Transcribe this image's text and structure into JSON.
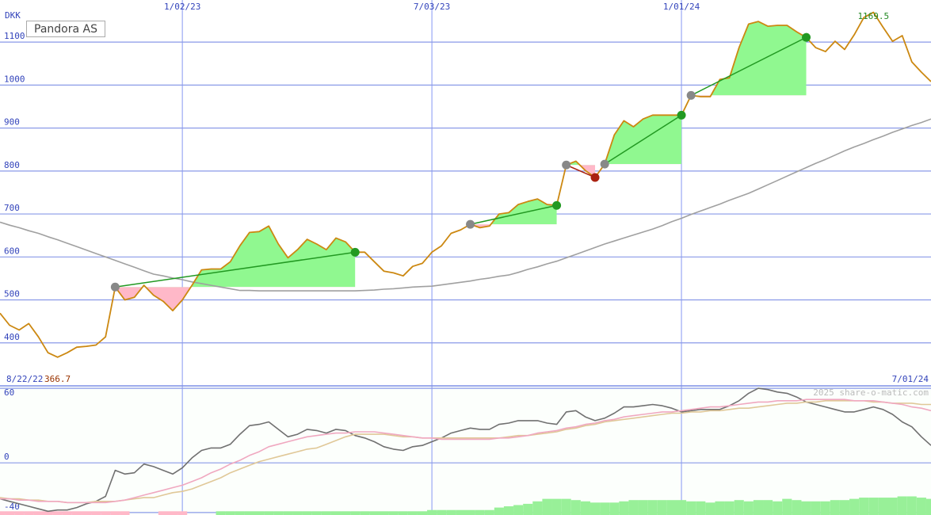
{
  "chart_data": [
    {
      "type": "line",
      "title": "Pandora AS",
      "y_label": "DKK",
      "xlim": [
        "8/22/22",
        "7/01/24"
      ],
      "xticks": [
        "1/02/23",
        "7/03/23",
        "1/01/24"
      ],
      "ylim": [
        300,
        1198
      ],
      "yticks": [
        400,
        500,
        600,
        700,
        800,
        900,
        1000,
        1100
      ],
      "grid": true,
      "low": 366.7,
      "high": 1169.5,
      "low_color": "#993300",
      "high_color": "#228822",
      "series": [
        {
          "color": "#cc8811",
          "values": [
            469,
            441,
            430,
            445,
            414,
            377,
            366.7,
            377,
            390,
            392,
            395,
            414,
            530,
            500,
            506,
            534,
            511,
            497,
            475,
            500,
            534,
            570,
            572,
            572,
            589,
            626,
            657,
            659,
            672,
            630,
            598,
            617,
            641,
            630,
            617,
            644,
            635,
            611,
            611,
            589,
            567,
            563,
            556,
            578,
            585,
            611,
            626,
            655,
            663,
            676,
            668,
            672,
            700,
            703,
            722,
            729,
            735,
            722,
            720,
            814,
            823,
            801,
            785,
            816,
            884,
            917,
            903,
            921,
            930,
            930,
            930,
            930,
            976,
            973,
            973,
            1013,
            1017,
            1087,
            1142,
            1148,
            1137,
            1139,
            1139,
            1124,
            1111,
            1087,
            1078,
            1102,
            1083,
            1117,
            1157,
            1169.5,
            1135,
            1102,
            1115,
            1054,
            1030,
            1008
          ]
        },
        {
          "color": "#a0a0a0",
          "values": [
            681,
            674,
            668,
            661,
            655,
            647,
            640,
            632,
            624,
            616,
            608,
            600,
            592,
            584,
            576,
            568,
            560,
            556,
            551,
            547,
            542,
            538,
            534,
            530,
            526,
            522,
            522,
            521,
            521,
            521,
            521,
            521,
            521,
            521,
            521,
            521,
            521,
            521,
            522,
            523,
            525,
            526,
            528,
            530,
            531,
            532,
            535,
            538,
            541,
            544,
            548,
            551,
            555,
            558,
            564,
            571,
            577,
            584,
            590,
            598,
            606,
            614,
            622,
            630,
            637,
            644,
            651,
            658,
            665,
            673,
            682,
            690,
            699,
            707,
            715,
            723,
            732,
            740,
            748,
            758,
            768,
            778,
            788,
            798,
            808,
            818,
            827,
            837,
            847,
            856,
            864,
            873,
            881,
            890,
            898,
            906,
            913,
            921
          ]
        }
      ],
      "trades": [
        {
          "entry": 12,
          "exit": 37
        },
        {
          "entry": 49,
          "exit": 58
        },
        {
          "entry": 59,
          "exit": 62
        },
        {
          "entry": 63,
          "exit": 71
        },
        {
          "entry": 72,
          "exit": 84
        }
      ],
      "entry_color": "#888888",
      "gain_color": "#229922",
      "loss_color": "#aa2211",
      "gain_fill": "#90f890",
      "loss_fill": "#ffb8c8"
    },
    {
      "type": "line",
      "watermark": "2025 share-o-matic.com",
      "ylim": [
        -42,
        62
      ],
      "yticks": [
        -40,
        0,
        60
      ],
      "grid": true,
      "series": [
        {
          "type": "bar",
          "color": "#98f098",
          "values": [
            null,
            null,
            null,
            null,
            null,
            null,
            null,
            null,
            null,
            null,
            null,
            null,
            null,
            null,
            null,
            null,
            null,
            null,
            null,
            null,
            null,
            null,
            null,
            -39,
            -39,
            -39,
            -39,
            -39,
            -39,
            -39,
            -39,
            -39,
            -39,
            -39,
            -39,
            -39,
            -39,
            -39,
            -39,
            -39,
            -39,
            -39,
            -39,
            -39,
            -39,
            -38,
            -38,
            -38,
            -38,
            -38,
            -38,
            -38,
            -36,
            -35,
            -34,
            -33,
            -31,
            -29,
            -29,
            -29,
            -30,
            -31,
            -32,
            -32,
            -32,
            -31,
            -30,
            -30,
            -30,
            -30,
            -30,
            -30,
            -31,
            -31,
            -32,
            -31,
            -31,
            -30,
            -31,
            -30,
            -30,
            -31,
            -29,
            -30,
            -31,
            -31,
            -31,
            -30,
            -30,
            -29,
            -28,
            -28,
            -28,
            -28,
            -27,
            -27,
            -28,
            -29
          ]
        },
        {
          "type": "bar",
          "color": "#ffb8c8",
          "values": [
            -39,
            -39,
            -39,
            -39,
            -39,
            -39,
            -39,
            -39,
            -39,
            -39,
            -39,
            -39,
            -39,
            -39,
            null,
            null,
            null,
            -39,
            -39,
            -39,
            null,
            null,
            null,
            null,
            null,
            null,
            null,
            null,
            null,
            null,
            null,
            null,
            null,
            null,
            null,
            null,
            null,
            null,
            null,
            null,
            null,
            null,
            null,
            null,
            null,
            null,
            null,
            null,
            null,
            null,
            null,
            null,
            null,
            null,
            null,
            null,
            null,
            null,
            null,
            null,
            null,
            null,
            null,
            null,
            null,
            null,
            null,
            null,
            null,
            null,
            null,
            null,
            null,
            null,
            null,
            null,
            null,
            null,
            null,
            null,
            null,
            null,
            null,
            null,
            null,
            null,
            null,
            null,
            null,
            null,
            null,
            null,
            null,
            null,
            null,
            null,
            null,
            null
          ]
        },
        {
          "color": "#f0a8c0",
          "values": [
            -29,
            -29,
            -30,
            -30,
            -31,
            -31,
            -31,
            -32,
            -32,
            -32,
            -32,
            -32,
            -31,
            -30,
            -28,
            -26,
            -24,
            -22,
            -20,
            -18,
            -15,
            -12,
            -8,
            -5,
            -1,
            2,
            6,
            9,
            13,
            15,
            17,
            19,
            21,
            22,
            23,
            24,
            24,
            25,
            25,
            25,
            24,
            23,
            22,
            21,
            20,
            20,
            19,
            19,
            19,
            19,
            19,
            19,
            20,
            20,
            21,
            22,
            24,
            25,
            26,
            28,
            29,
            31,
            32,
            34,
            35,
            37,
            38,
            39,
            40,
            41,
            41,
            42,
            43,
            44,
            45,
            45,
            46,
            47,
            48,
            49,
            49,
            50,
            50,
            50,
            51,
            51,
            51,
            51,
            51,
            50,
            50,
            50,
            49,
            48,
            47,
            45,
            44,
            42
          ]
        },
        {
          "color": "#e0c898",
          "values": [
            -28,
            -29,
            -29,
            -30,
            -30,
            -31,
            -31,
            -32,
            -32,
            -32,
            -31,
            -31,
            -31,
            -30,
            -29,
            -28,
            -28,
            -26,
            -24,
            -23,
            -21,
            -18,
            -15,
            -12,
            -8,
            -5,
            -2,
            1,
            3,
            5,
            7,
            9,
            11,
            12,
            15,
            18,
            21,
            23,
            23,
            23,
            23,
            22,
            21,
            21,
            20,
            20,
            20,
            20,
            20,
            20,
            20,
            20,
            20,
            21,
            22,
            22,
            23,
            24,
            25,
            27,
            28,
            30,
            31,
            33,
            34,
            35,
            36,
            37,
            38,
            39,
            40,
            40,
            41,
            41,
            42,
            42,
            43,
            44,
            44,
            45,
            46,
            47,
            48,
            48,
            49,
            49,
            50,
            50,
            50,
            50,
            50,
            49,
            49,
            48,
            48,
            48,
            47,
            47
          ]
        },
        {
          "color": "#707070",
          "values": [
            -29,
            -31,
            -33,
            -35,
            -37,
            -39,
            -38,
            -38,
            -36,
            -33,
            -31,
            -27,
            -6,
            -9,
            -8,
            -1,
            -3,
            -6,
            -9,
            -4,
            4,
            10,
            12,
            12,
            15,
            23,
            30,
            31,
            33,
            27,
            21,
            23,
            27,
            26,
            24,
            27,
            26,
            22,
            20,
            17,
            13,
            11,
            10,
            13,
            14,
            17,
            20,
            24,
            26,
            28,
            27,
            27,
            31,
            32,
            34,
            34,
            34,
            32,
            31,
            41,
            42,
            37,
            34,
            36,
            40,
            45,
            45,
            46,
            47,
            46,
            44,
            41,
            42,
            43,
            43,
            43,
            46,
            50,
            56,
            60,
            59,
            57,
            56,
            53,
            49,
            47,
            45,
            43,
            41,
            41,
            43,
            45,
            43,
            39,
            33,
            29,
            21,
            14
          ]
        }
      ]
    }
  ]
}
